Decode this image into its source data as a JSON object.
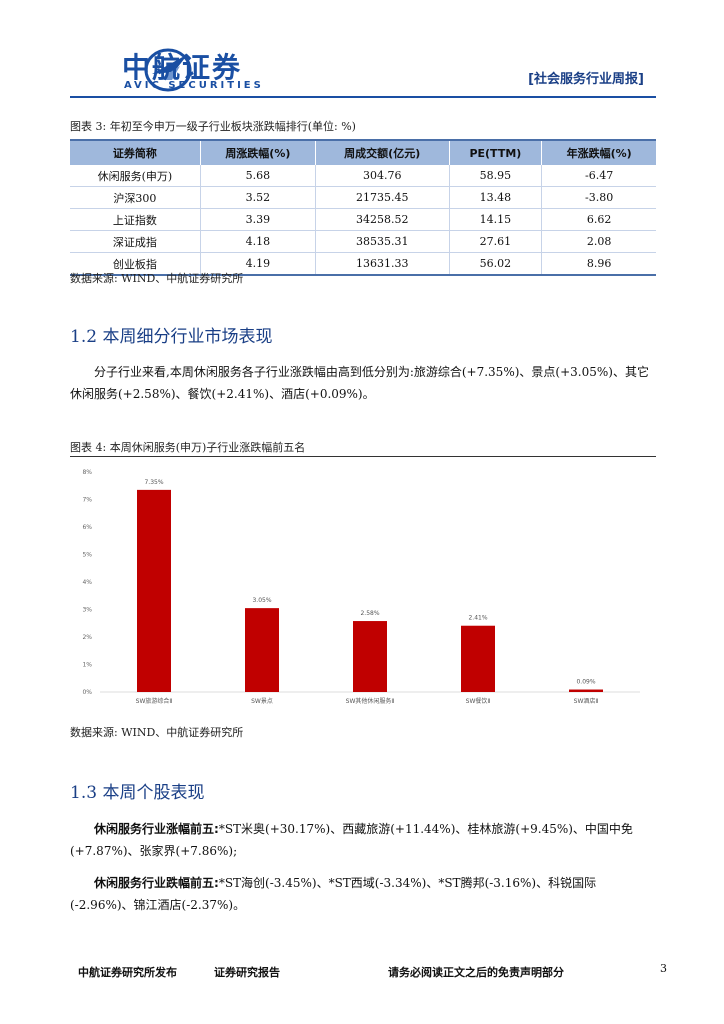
{
  "header": {
    "brand_cn": "中航证券",
    "brand_en": "AVIC SECURITIES",
    "report_type": "[社会服务行业周报]",
    "logo_icon": "avic-plane-logo-icon",
    "brand_color": "#1a4fa3"
  },
  "figure3": {
    "caption": "图表 3: 年初至今申万一级子行业板块涨跌幅排行(单位: %)",
    "columns": [
      "证券简称",
      "周涨跌幅(%)",
      "周成交额(亿元)",
      "PE(TTM)",
      "年涨跌幅(%)"
    ],
    "rows": [
      [
        "休闲服务(申万)",
        "5.68",
        "304.76",
        "58.95",
        "-6.47"
      ],
      [
        "沪深300",
        "3.52",
        "21735.45",
        "13.48",
        "-3.80"
      ],
      [
        "上证指数",
        "3.39",
        "34258.52",
        "14.15",
        "6.62"
      ],
      [
        "深证成指",
        "4.18",
        "38535.31",
        "27.61",
        "2.08"
      ],
      [
        "创业板指",
        "4.19",
        "13631.33",
        "56.02",
        "8.96"
      ]
    ],
    "source": "数据来源: WIND、中航证券研究所"
  },
  "section12": {
    "title": "1.2 本周细分行业市场表现",
    "para": "分子行业来看,本周休闲服务各子行业涨跌幅由高到低分别为:旅游综合(+7.35%)、景点(+3.05%)、其它休闲服务(+2.58%)、餐饮(+2.41%)、酒店(+0.09%)。"
  },
  "figure4": {
    "caption": "图表 4: 本周休闲服务(申万)子行业涨跌幅前五名",
    "source": "数据来源: WIND、中航证券研究所"
  },
  "chart_data": {
    "type": "bar",
    "categories": [
      "SW旅游综合Ⅱ",
      "SW景点",
      "SW其他休闲服务Ⅱ",
      "SW餐饮Ⅱ",
      "SW酒店Ⅱ"
    ],
    "values": [
      7.35,
      3.05,
      2.58,
      2.41,
      0.09
    ],
    "data_labels": [
      "7.35%",
      "3.05%",
      "2.58%",
      "2.41%",
      "0.09%"
    ],
    "yticks": [
      "0%",
      "1%",
      "2%",
      "3%",
      "4%",
      "5%",
      "6%",
      "7%",
      "8%"
    ],
    "ylim": [
      0,
      8
    ],
    "bar_color": "#c00000",
    "grid": false
  },
  "section13": {
    "title": "1.3 本周个股表现",
    "gainers_label": "休闲服务行业涨幅前五:",
    "gainers_text": "*ST米奥(+30.17%)、西藏旅游(+11.44%)、桂林旅游(+9.45%)、中国中免(+7.87%)、张家界(+7.86%);",
    "losers_label": "休闲服务行业跌幅前五:",
    "losers_text": "*ST海创(-3.45%)、*ST西域(-3.34%)、*ST腾邦(-3.16%)、科锐国际(-2.96%)、锦江酒店(-2.37%)。"
  },
  "footer": {
    "publisher": "中航证券研究所发布",
    "report_kind": "证券研究报告",
    "disclaimer": "请务必阅读正文之后的免责声明部分",
    "page_number": "3"
  }
}
